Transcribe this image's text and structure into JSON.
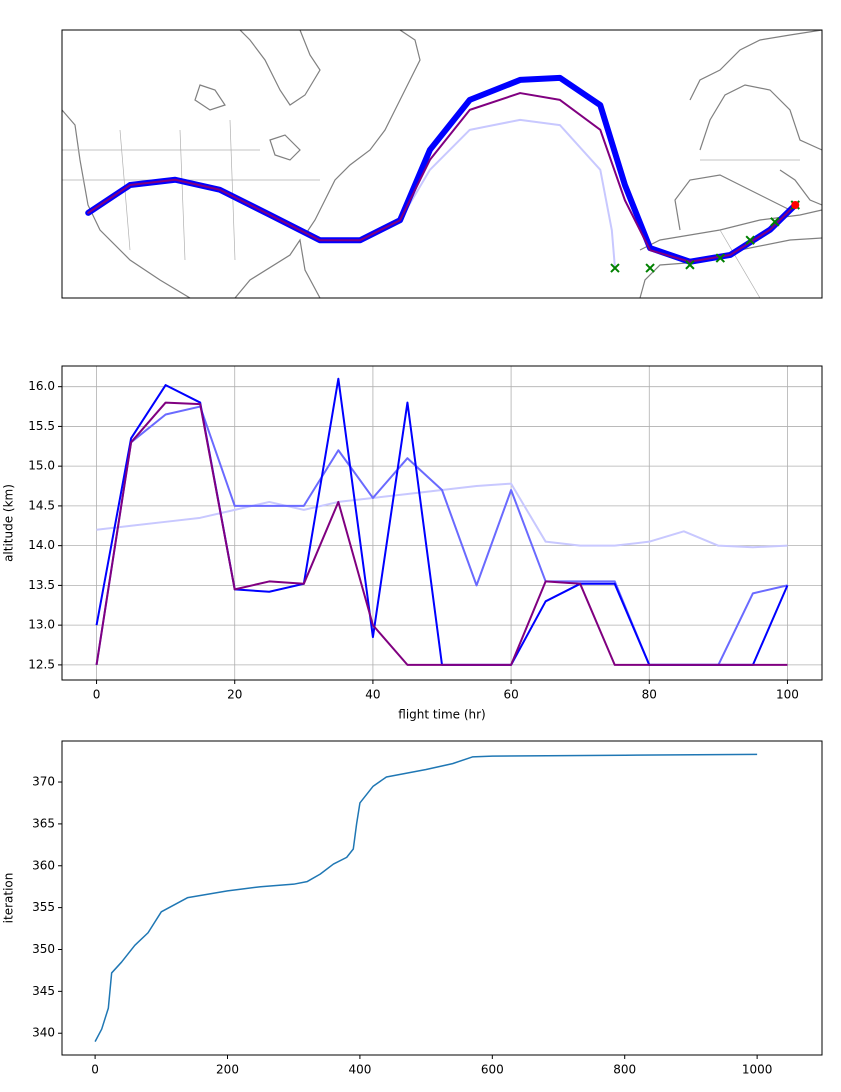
{
  "chart_data": [
    {
      "type": "map",
      "xlim": [
        -125,
        20
      ],
      "ylim": [
        11,
        62
      ],
      "series": [
        {
          "color": "#c8c8ff",
          "x": [
            -120.0,
            -112.0,
            -103.4,
            -94.9,
            -85.3,
            -75.8,
            -68.1,
            -60.5,
            -54.8,
            -47.2,
            -37.6,
            -30.0,
            -22.3,
            -20.1,
            -19.5
          ],
          "values": [
            27.2,
            32.5,
            33.5,
            31.6,
            26.8,
            22.0,
            22.0,
            25.8,
            35.4,
            43.0,
            44.9,
            43.9,
            35.4,
            23.9,
            16.7
          ]
        },
        {
          "color": "#0000ff",
          "x": [
            -120.0,
            -112.0,
            -103.4,
            -94.9,
            -85.3,
            -75.8,
            -68.1,
            -60.5,
            -54.8,
            -47.2,
            -37.6,
            -30.0,
            -22.3,
            -17.6,
            -12.8,
            -5.2,
            2.5,
            10.1,
            14.9
          ],
          "values": [
            27.2,
            32.5,
            33.5,
            31.6,
            26.8,
            22.0,
            22.0,
            25.8,
            39.2,
            48.7,
            52.5,
            52.9,
            47.7,
            32.5,
            20.5,
            17.9,
            19.2,
            24.0,
            28.7
          ]
        },
        {
          "color": "#800080",
          "x": [
            -120.0,
            -112.0,
            -103.4,
            -94.9,
            -85.3,
            -75.8,
            -68.1,
            -60.5,
            -54.8,
            -47.2,
            -37.6,
            -30.0,
            -22.3,
            -17.6,
            -12.8,
            -5.2,
            2.5,
            10.1,
            14.9
          ],
          "values": [
            27.2,
            32.5,
            33.5,
            31.6,
            26.8,
            22.0,
            22.0,
            25.8,
            37.3,
            46.8,
            50.0,
            48.7,
            43.0,
            29.6,
            20.1,
            17.9,
            19.2,
            24.0,
            28.7
          ]
        },
        {
          "color": "#008000",
          "marker": "x",
          "x": [
            -19.5,
            -12.8,
            -5.2,
            0.6,
            6.3,
            11.0,
            14.9
          ],
          "values": [
            16.7,
            16.7,
            17.3,
            18.6,
            22.0,
            25.5,
            28.7
          ]
        },
        {
          "color": "#ff0000",
          "marker": "o",
          "x": [
            14.9
          ],
          "values": [
            28.7
          ]
        }
      ]
    },
    {
      "type": "line",
      "xlabel": "flight time (hr)",
      "ylabel": "altitude (km)",
      "grid": true,
      "xlim": [
        -5,
        105
      ],
      "ylim": [
        12.31,
        16.26
      ],
      "xticks": [
        0,
        20,
        40,
        60,
        80,
        100
      ],
      "yticks": [
        12.5,
        {
          "value": 13,
          "label": "13.0"
        },
        13.5,
        {
          "value": 14,
          "label": "14.0"
        },
        14.5,
        {
          "value": 15,
          "label": "15.0"
        },
        15.5,
        {
          "value": 16,
          "label": "16.0"
        }
      ],
      "x": [
        0,
        5,
        10,
        15,
        20,
        25,
        30,
        35,
        40,
        45,
        50,
        55,
        60,
        65,
        70,
        75,
        80,
        85,
        90,
        95,
        100
      ],
      "series": [
        {
          "color": "#c8c8ff",
          "values": [
            14.2,
            14.25,
            14.3,
            14.35,
            14.45,
            14.55,
            14.45,
            14.55,
            14.6,
            14.65,
            14.7,
            14.75,
            14.78,
            14.05,
            14.0,
            14.0,
            14.05,
            14.18,
            14.0,
            13.98,
            14.0
          ]
        },
        {
          "color": "#6a6aff",
          "values": [
            12.5,
            15.3,
            15.65,
            15.75,
            14.5,
            14.5,
            14.5,
            15.2,
            14.6,
            15.1,
            14.7,
            13.5,
            14.7,
            13.55,
            13.55,
            13.55,
            12.5,
            12.5,
            12.5,
            13.4,
            13.5
          ]
        },
        {
          "color": "#0000ff",
          "values": [
            13.0,
            15.35,
            16.02,
            15.8,
            13.45,
            13.42,
            13.52,
            16.1,
            12.85,
            15.8,
            12.5,
            12.5,
            12.5,
            13.3,
            13.52,
            13.52,
            12.5,
            12.5,
            12.5,
            12.5,
            13.5
          ]
        },
        {
          "color": "#800080",
          "values": [
            12.5,
            15.3,
            15.8,
            15.78,
            13.45,
            13.55,
            13.52,
            14.55,
            13.0,
            12.5,
            12.5,
            12.5,
            12.5,
            13.55,
            13.52,
            12.5,
            12.5,
            12.5,
            12.5,
            12.5,
            12.5
          ]
        }
      ]
    },
    {
      "type": "line",
      "ylabel": "iteration",
      "grid": false,
      "color": "#1f77b4",
      "xlim": [
        -50,
        1098
      ],
      "ylim": [
        337.4,
        374.9
      ],
      "xticks": [
        0,
        200,
        400,
        600,
        800,
        1000
      ],
      "yticks": [
        340,
        345,
        350,
        355,
        360,
        365,
        370
      ],
      "x": [
        0,
        10,
        20,
        25,
        40,
        60,
        80,
        100,
        140,
        200,
        250,
        300,
        320,
        340,
        360,
        380,
        390,
        395,
        400,
        420,
        440,
        500,
        540,
        570,
        600,
        800,
        1000
      ],
      "values": [
        339,
        340.5,
        343,
        347.2,
        348.5,
        350.5,
        352,
        354.5,
        356.2,
        357,
        357.5,
        357.8,
        358.1,
        359,
        360.2,
        361,
        362,
        365,
        367.5,
        369.5,
        370.6,
        371.5,
        372.2,
        373,
        373.1,
        373.2,
        373.3
      ]
    }
  ]
}
